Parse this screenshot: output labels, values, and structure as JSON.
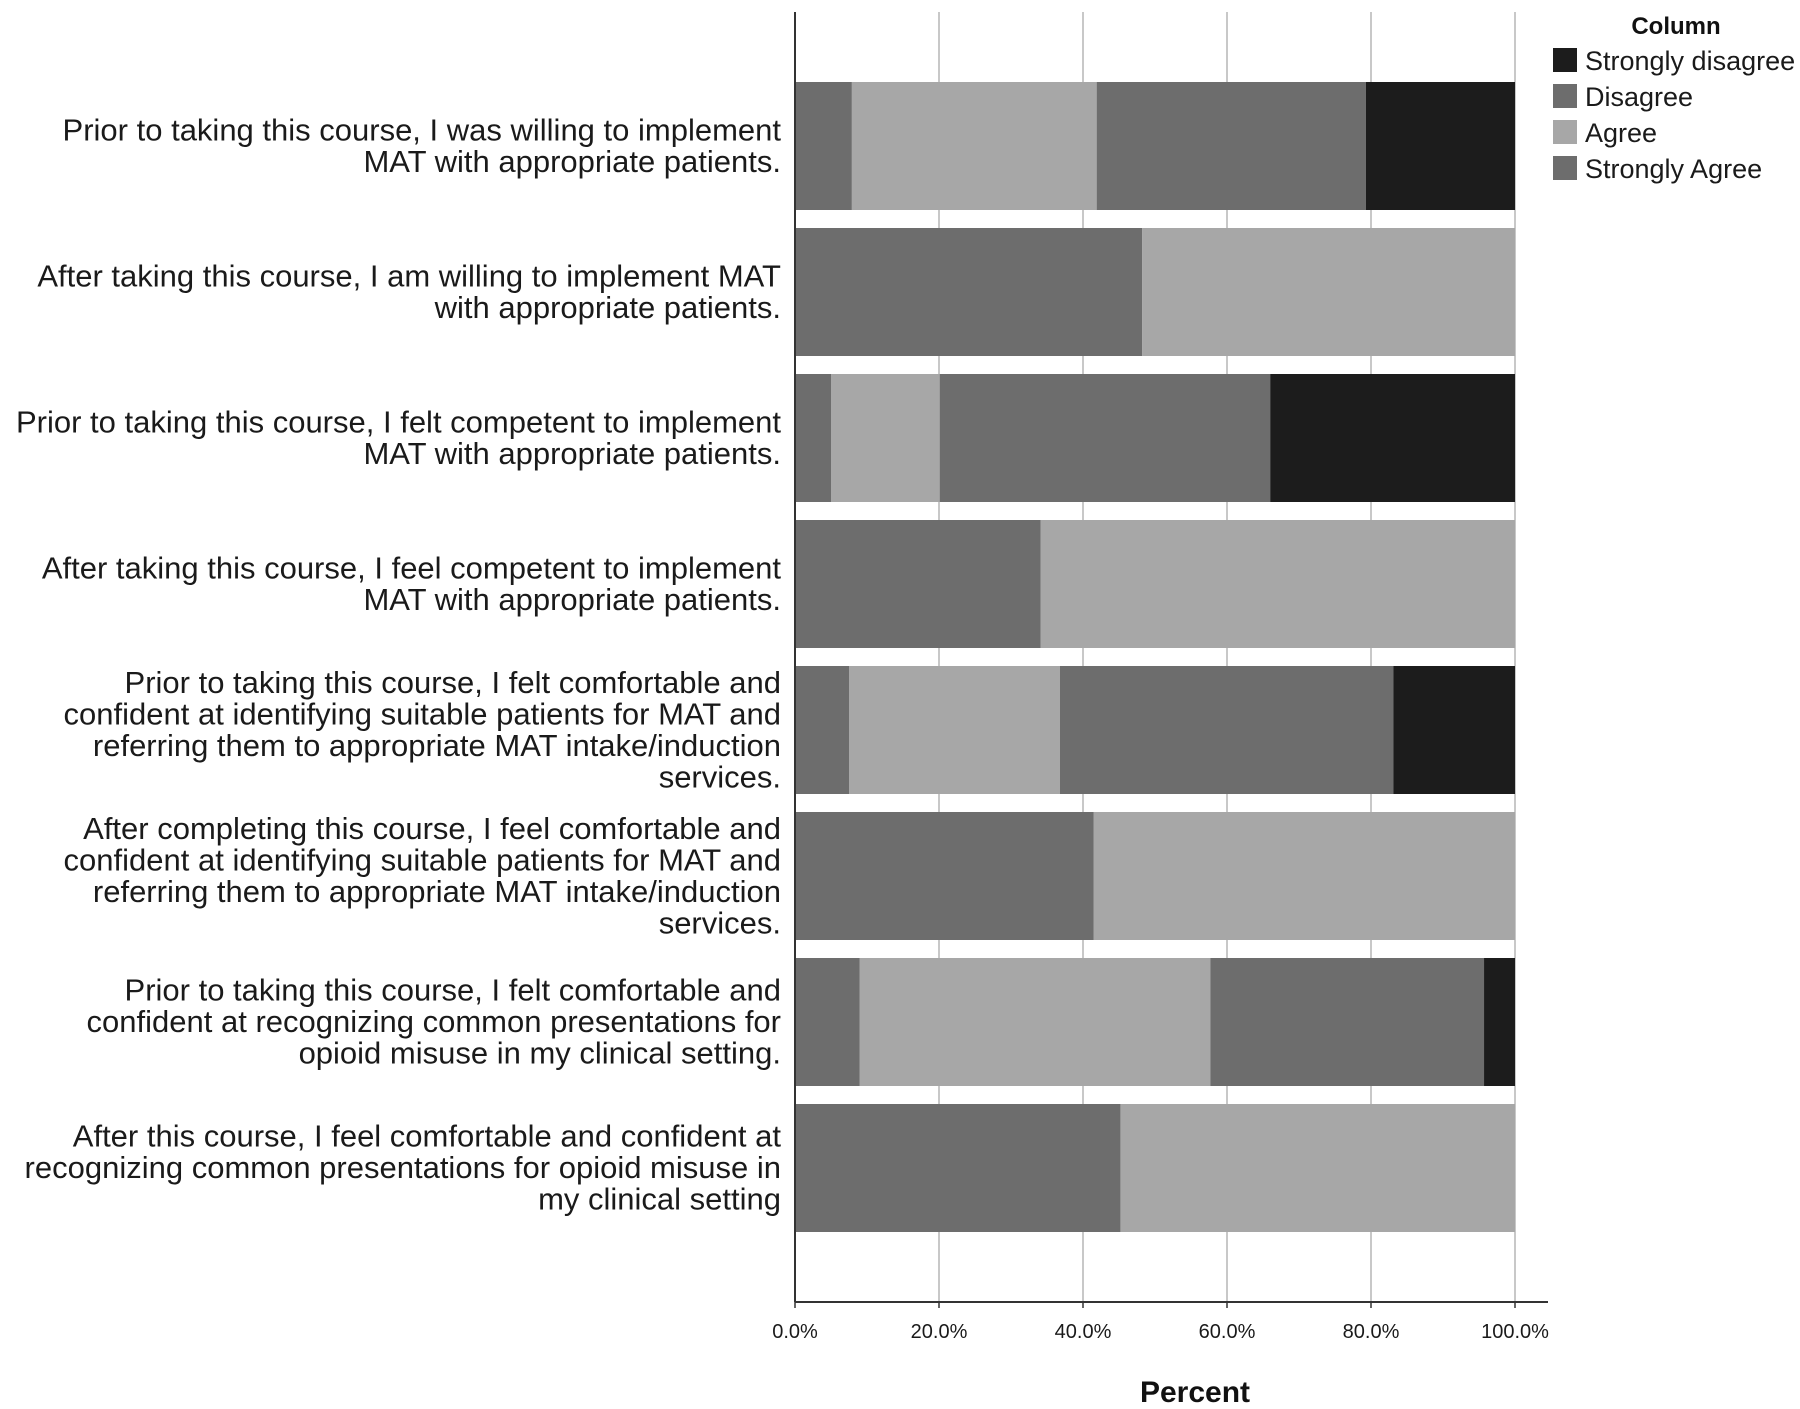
{
  "chart_data": {
    "type": "bar",
    "orientation": "horizontal",
    "stacked": true,
    "categories": [
      [
        "Prior to taking this course, I was willing to implement",
        "MAT with appropriate patients."
      ],
      [
        "After taking this course, I am willing to implement MAT",
        "with appropriate patients."
      ],
      [
        "Prior to taking this course, I felt competent to implement",
        "MAT with appropriate patients."
      ],
      [
        "After taking this course, I feel competent to implement",
        "MAT with appropriate patients."
      ],
      [
        "Prior to taking this course, I felt comfortable and",
        "confident at identifying suitable patients for MAT and",
        "referring them to appropriate MAT intake/induction",
        "services."
      ],
      [
        "After completing this course, I feel comfortable and",
        "confident at identifying suitable patients for MAT and",
        "referring them to appropriate MAT intake/induction",
        "services."
      ],
      [
        "Prior to taking this course, I felt comfortable and",
        "confident at recognizing common presentations for",
        "opioid misuse in my clinical setting."
      ],
      [
        "After this course, I feel comfortable and confident at",
        "recognizing common presentations for opioid misuse in",
        "my clinical setting"
      ]
    ],
    "segment_order": [
      "Strongly Agree",
      "Agree",
      "Disagree",
      "Strongly disagree"
    ],
    "series": [
      {
        "name": "Strongly disagree",
        "color": "#1c1c1c",
        "values": [
          20.7,
          0.0,
          34.0,
          0.0,
          16.9,
          0.0,
          4.3,
          0.0
        ]
      },
      {
        "name": "Disagree",
        "color": "#6d6d6d",
        "values": [
          37.4,
          0.0,
          45.9,
          0.0,
          46.3,
          0.0,
          38.0,
          0.0
        ]
      },
      {
        "name": "Agree",
        "color": "#a7a7a7",
        "values": [
          34.0,
          51.8,
          15.1,
          65.9,
          29.3,
          58.5,
          48.7,
          54.8
        ]
      },
      {
        "name": "Strongly Agree",
        "color": "#6d6d6d",
        "values": [
          7.9,
          48.2,
          5.0,
          34.1,
          7.5,
          41.5,
          9.0,
          45.2
        ]
      }
    ],
    "xlabel": "Percent",
    "xlim": [
      0,
      100
    ],
    "xticks": [
      "0.0%",
      "20.0%",
      "40.0%",
      "60.0%",
      "80.0%",
      "100.0%"
    ],
    "legend": {
      "title": "Column",
      "position": "top-right"
    },
    "grid": "vertical"
  }
}
